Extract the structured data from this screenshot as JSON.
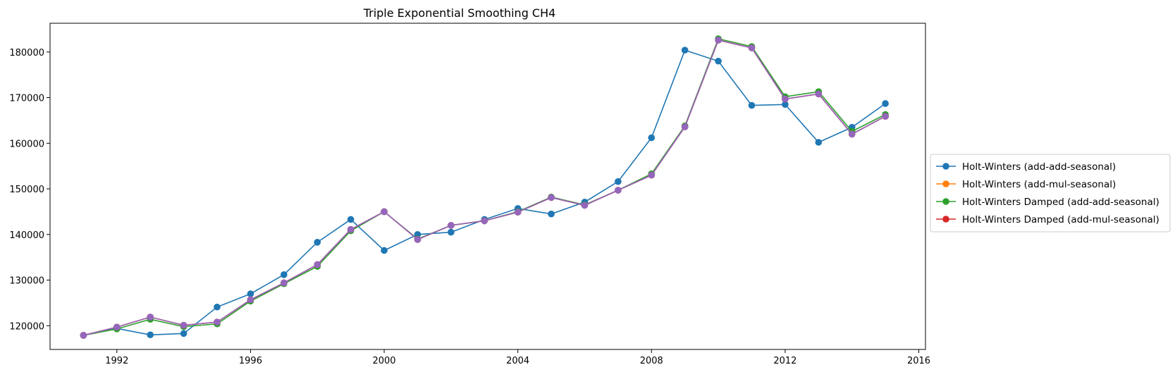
{
  "chart_data": {
    "type": "line",
    "title": "Triple Exponential Smoothing CH4",
    "xlabel": "",
    "ylabel": "",
    "x": [
      1991,
      1992,
      1993,
      1994,
      1995,
      1996,
      1997,
      1998,
      1999,
      2000,
      2001,
      2002,
      2003,
      2004,
      2005,
      2006,
      2007,
      2008,
      2009,
      2010,
      2011,
      2012,
      2013,
      2014,
      2015
    ],
    "xlim": [
      1990.0,
      2016.2
    ],
    "ylim": [
      114800,
      186300
    ],
    "x_ticks": [
      1992,
      1996,
      2000,
      2004,
      2008,
      2012,
      2016
    ],
    "y_ticks": [
      120000,
      130000,
      140000,
      150000,
      160000,
      170000,
      180000
    ],
    "grid": false,
    "legend_position": "center-right-outside",
    "markers": true,
    "series": [
      {
        "name": "Holt-Winters (add-add-seasonal)",
        "color": "#1f77b4",
        "values": [
          117900,
          119400,
          118000,
          118300,
          124100,
          127000,
          131200,
          138300,
          143300,
          136500,
          140000,
          140500,
          143300,
          145700,
          144500,
          147100,
          151600,
          161200,
          180400,
          178000,
          168300,
          168500,
          160200,
          163500,
          168700
        ]
      },
      {
        "name": "Holt-Winters (add-mul-seasonal)",
        "color": "#ff7f0e",
        "values": [
          117900,
          119700,
          121900,
          120100,
          120800,
          125700,
          129400,
          133400,
          141100,
          145000,
          138900,
          142000,
          143000,
          144900,
          148100,
          146400,
          149700,
          153000,
          163600,
          182600,
          180900,
          169700,
          170800,
          162000,
          165900
        ]
      },
      {
        "name": "Holt-Winters Damped (add-add-seasonal)",
        "color": "#2ca02c",
        "values": [
          117900,
          119300,
          121400,
          119800,
          120400,
          125400,
          129200,
          133000,
          140800,
          145000,
          139000,
          142000,
          143000,
          145000,
          148200,
          146500,
          149700,
          153300,
          163800,
          182900,
          181200,
          170200,
          171300,
          162600,
          166300
        ]
      },
      {
        "name": "Holt-Winters Damped (add-mul-seasonal)",
        "color": "#d62728",
        "values": [
          117900,
          119700,
          121900,
          120100,
          120800,
          125700,
          129400,
          133400,
          141100,
          145000,
          138900,
          142000,
          143000,
          144900,
          148100,
          146400,
          149700,
          153000,
          163600,
          182600,
          180900,
          169700,
          170800,
          162000,
          165900
        ]
      },
      {
        "color": "#9467bd",
        "values": [
          117900,
          119700,
          121900,
          120100,
          120800,
          125700,
          129400,
          133400,
          141100,
          145000,
          138900,
          142000,
          143000,
          144900,
          148100,
          146400,
          149700,
          153000,
          163600,
          182600,
          180900,
          169700,
          170800,
          162000,
          165900
        ]
      }
    ]
  }
}
